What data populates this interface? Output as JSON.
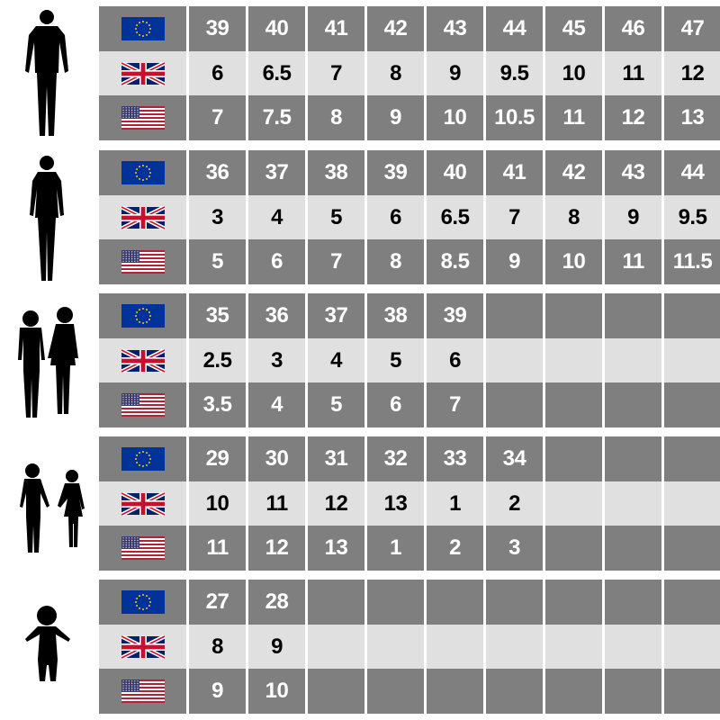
{
  "colors": {
    "dark_row": "#7f7f7f",
    "light_row": "#e0e0e0",
    "eu_blue": "#003399",
    "eu_star": "#ffcc00"
  },
  "row_flags": [
    "eu-flag",
    "uk-flag",
    "us-flag"
  ],
  "groups": [
    {
      "silhouette": "man-icon",
      "eu": [
        "39",
        "40",
        "41",
        "42",
        "43",
        "44",
        "45",
        "46",
        "47"
      ],
      "uk": [
        "6",
        "6.5",
        "7",
        "8",
        "9",
        "9.5",
        "10",
        "11",
        "12"
      ],
      "us": [
        "7",
        "7.5",
        "8",
        "9",
        "10",
        "10.5",
        "11",
        "12",
        "13"
      ]
    },
    {
      "silhouette": "woman-icon",
      "eu": [
        "36",
        "37",
        "38",
        "39",
        "40",
        "41",
        "42",
        "43",
        "44"
      ],
      "uk": [
        "3",
        "4",
        "5",
        "6",
        "6.5",
        "7",
        "8",
        "9",
        "9.5"
      ],
      "us": [
        "5",
        "6",
        "7",
        "8",
        "8.5",
        "9",
        "10",
        "11",
        "11.5"
      ]
    },
    {
      "silhouette": "teen-children-icon",
      "eu": [
        "35",
        "36",
        "37",
        "38",
        "39",
        "",
        "",
        "",
        ""
      ],
      "uk": [
        "2.5",
        "3",
        "4",
        "5",
        "6",
        "",
        "",
        "",
        ""
      ],
      "us": [
        "3.5",
        "4",
        "5",
        "6",
        "7",
        "",
        "",
        "",
        ""
      ]
    },
    {
      "silhouette": "kids-holding-hands-icon",
      "eu": [
        "29",
        "30",
        "31",
        "32",
        "33",
        "34",
        "",
        "",
        ""
      ],
      "uk": [
        "10",
        "11",
        "12",
        "13",
        "1",
        "2",
        "",
        "",
        ""
      ],
      "us": [
        "11",
        "12",
        "13",
        "1",
        "2",
        "3",
        "",
        "",
        ""
      ]
    },
    {
      "silhouette": "toddler-icon",
      "eu": [
        "27",
        "28",
        "",
        "",
        "",
        "",
        "",
        "",
        ""
      ],
      "uk": [
        "8",
        "9",
        "",
        "",
        "",
        "",
        "",
        "",
        ""
      ],
      "us": [
        "9",
        "10",
        "",
        "",
        "",
        "",
        "",
        "",
        ""
      ]
    }
  ]
}
